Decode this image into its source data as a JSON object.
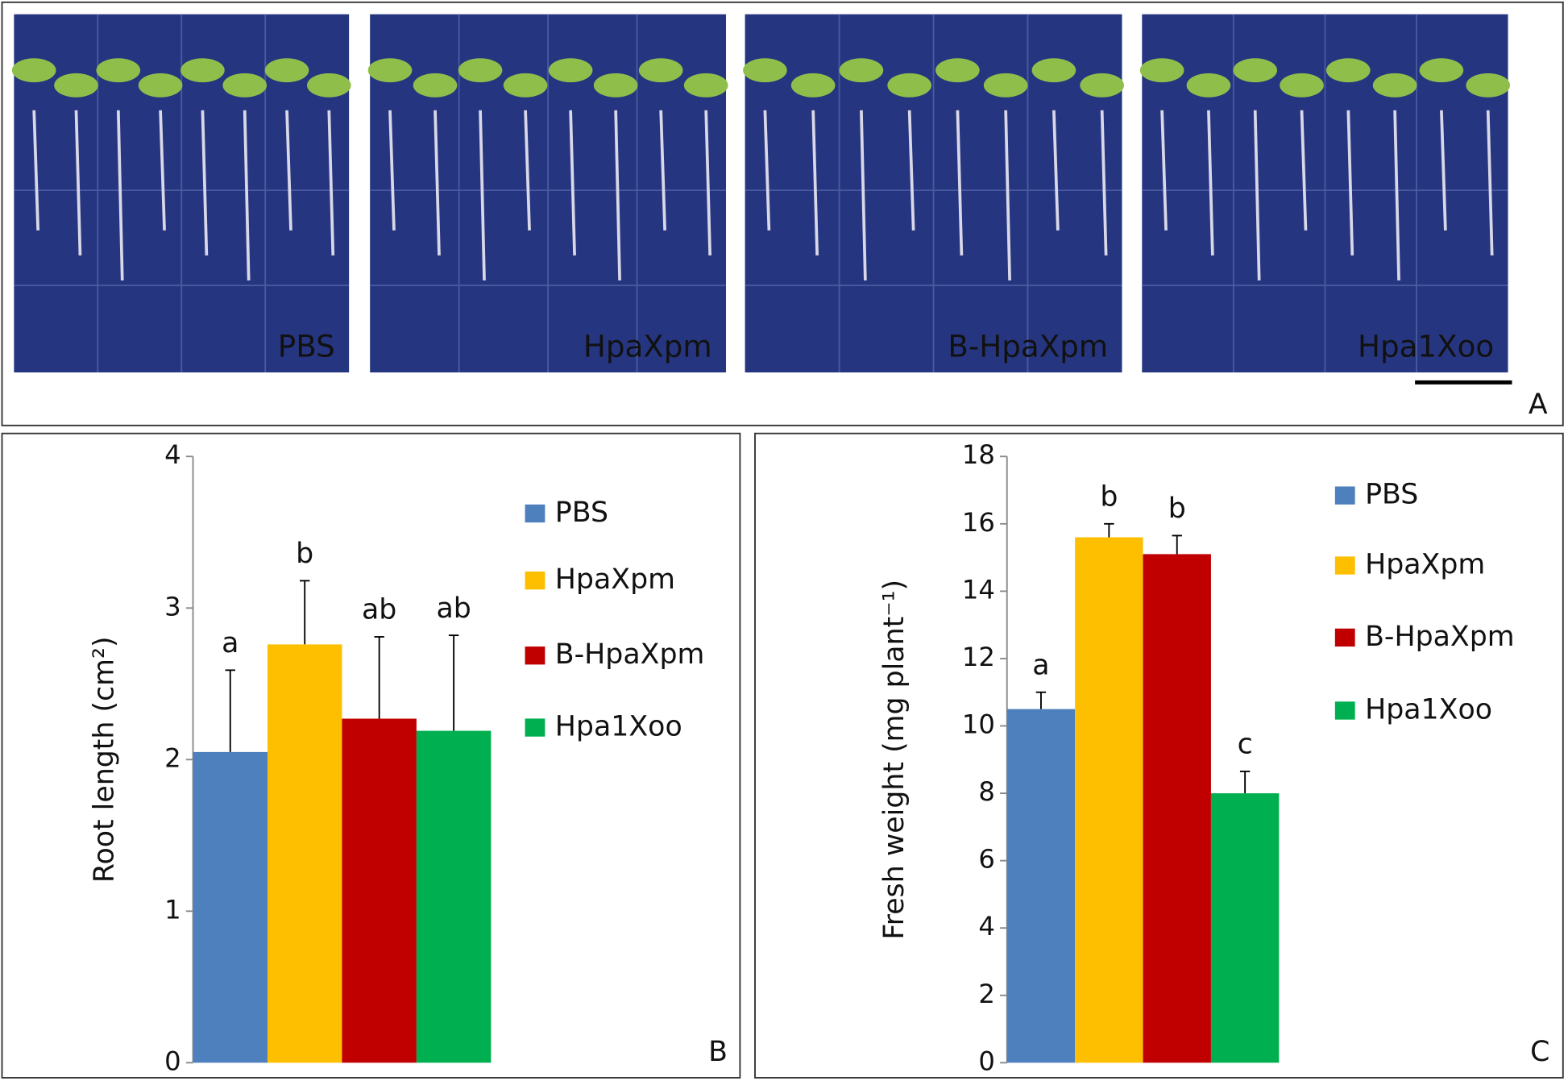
{
  "photo_panel": {
    "labels": [
      "PBS",
      "HpaXpm",
      "B-HpaXpm",
      "Hpa1Xoo"
    ],
    "panel_label": "A"
  },
  "chart_data": [
    {
      "type": "bar",
      "panel_label": "B",
      "y_label": "Root length (cm²)",
      "ylim": [
        0,
        4
      ],
      "yticks": [
        0,
        1,
        2,
        3,
        4
      ],
      "series": [
        {
          "name": "PBS",
          "color": "#4e80bd",
          "values": [
            2.05
          ],
          "errors": [
            0.54
          ],
          "significance": [
            "a"
          ]
        },
        {
          "name": "HpaXpm",
          "color": "#fdbf00",
          "values": [
            2.76
          ],
          "errors": [
            0.42
          ],
          "significance": [
            "b"
          ]
        },
        {
          "name": "B-HpaXpm",
          "color": "#c00000",
          "values": [
            2.27
          ],
          "errors": [
            0.54
          ],
          "significance": [
            "ab"
          ]
        },
        {
          "name": "Hpa1Xoo",
          "color": "#00b050",
          "values": [
            2.19
          ],
          "errors": [
            0.63
          ],
          "significance": [
            "ab"
          ]
        }
      ]
    },
    {
      "type": "bar",
      "panel_label": "C",
      "y_label": "Fresh weight (mg plant⁻¹)",
      "ylim": [
        0,
        18
      ],
      "yticks": [
        0,
        2,
        4,
        6,
        8,
        10,
        12,
        14,
        16,
        18
      ],
      "series": [
        {
          "name": "PBS",
          "color": "#4e80bd",
          "values": [
            10.5
          ],
          "errors": [
            0.5
          ],
          "significance": [
            "a"
          ]
        },
        {
          "name": "HpaXpm",
          "color": "#fdbf00",
          "values": [
            15.6
          ],
          "errors": [
            0.4
          ],
          "significance": [
            "b"
          ]
        },
        {
          "name": "B-HpaXpm",
          "color": "#c00000",
          "values": [
            15.1
          ],
          "errors": [
            0.55
          ],
          "significance": [
            "b"
          ]
        },
        {
          "name": "Hpa1Xoo",
          "color": "#00b050",
          "values": [
            8.0
          ],
          "errors": [
            0.65
          ],
          "significance": [
            "c"
          ]
        }
      ]
    }
  ]
}
